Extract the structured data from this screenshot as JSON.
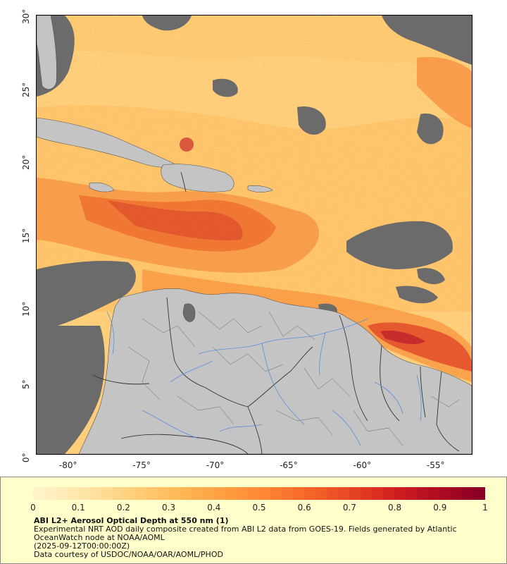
{
  "map": {
    "lon_ticks": [
      "-80°",
      "-75°",
      "-70°",
      "-65°",
      "-60°",
      "-55°"
    ],
    "lat_ticks": [
      "30°",
      "25°",
      "20°",
      "15°",
      "10°",
      "5°",
      "0°"
    ],
    "lon_range": [
      -82.2,
      -52.6
    ],
    "lat_range": [
      0,
      30
    ]
  },
  "legend": {
    "ticks": [
      "0",
      "0.1",
      "0.2",
      "0.3",
      "0.4",
      "0.5",
      "0.6",
      "0.7",
      "0.8",
      "0.9",
      "1"
    ],
    "range": [
      0,
      1
    ],
    "colors": [
      "#fff3c8",
      "#ffe6a8",
      "#ffd27e",
      "#ffbd5c",
      "#ffa444",
      "#ff8a36",
      "#f76a2a",
      "#e84824",
      "#d22220",
      "#b20c22",
      "#8a0026"
    ]
  },
  "caption": {
    "title": "ABI L2+ Aerosol Optical Depth at 550 nm (1)",
    "description": "Experimental NRT AOD daily composite created from ABI L2 data from GOES-19. Fields generated by Atlantic OceanWatch node at NOAA/AOML",
    "date": "(2025-09-12T00:00:00Z)",
    "credit": "Data courtesy of USDOC/NOAA/OAR/AOML/PHOD"
  },
  "colors": {
    "land": "#c4c4c4",
    "no_data": "#6b6b6b",
    "rivers": "#5b8fd8",
    "borders": "#333333",
    "legend_background": "#ffffcc"
  }
}
